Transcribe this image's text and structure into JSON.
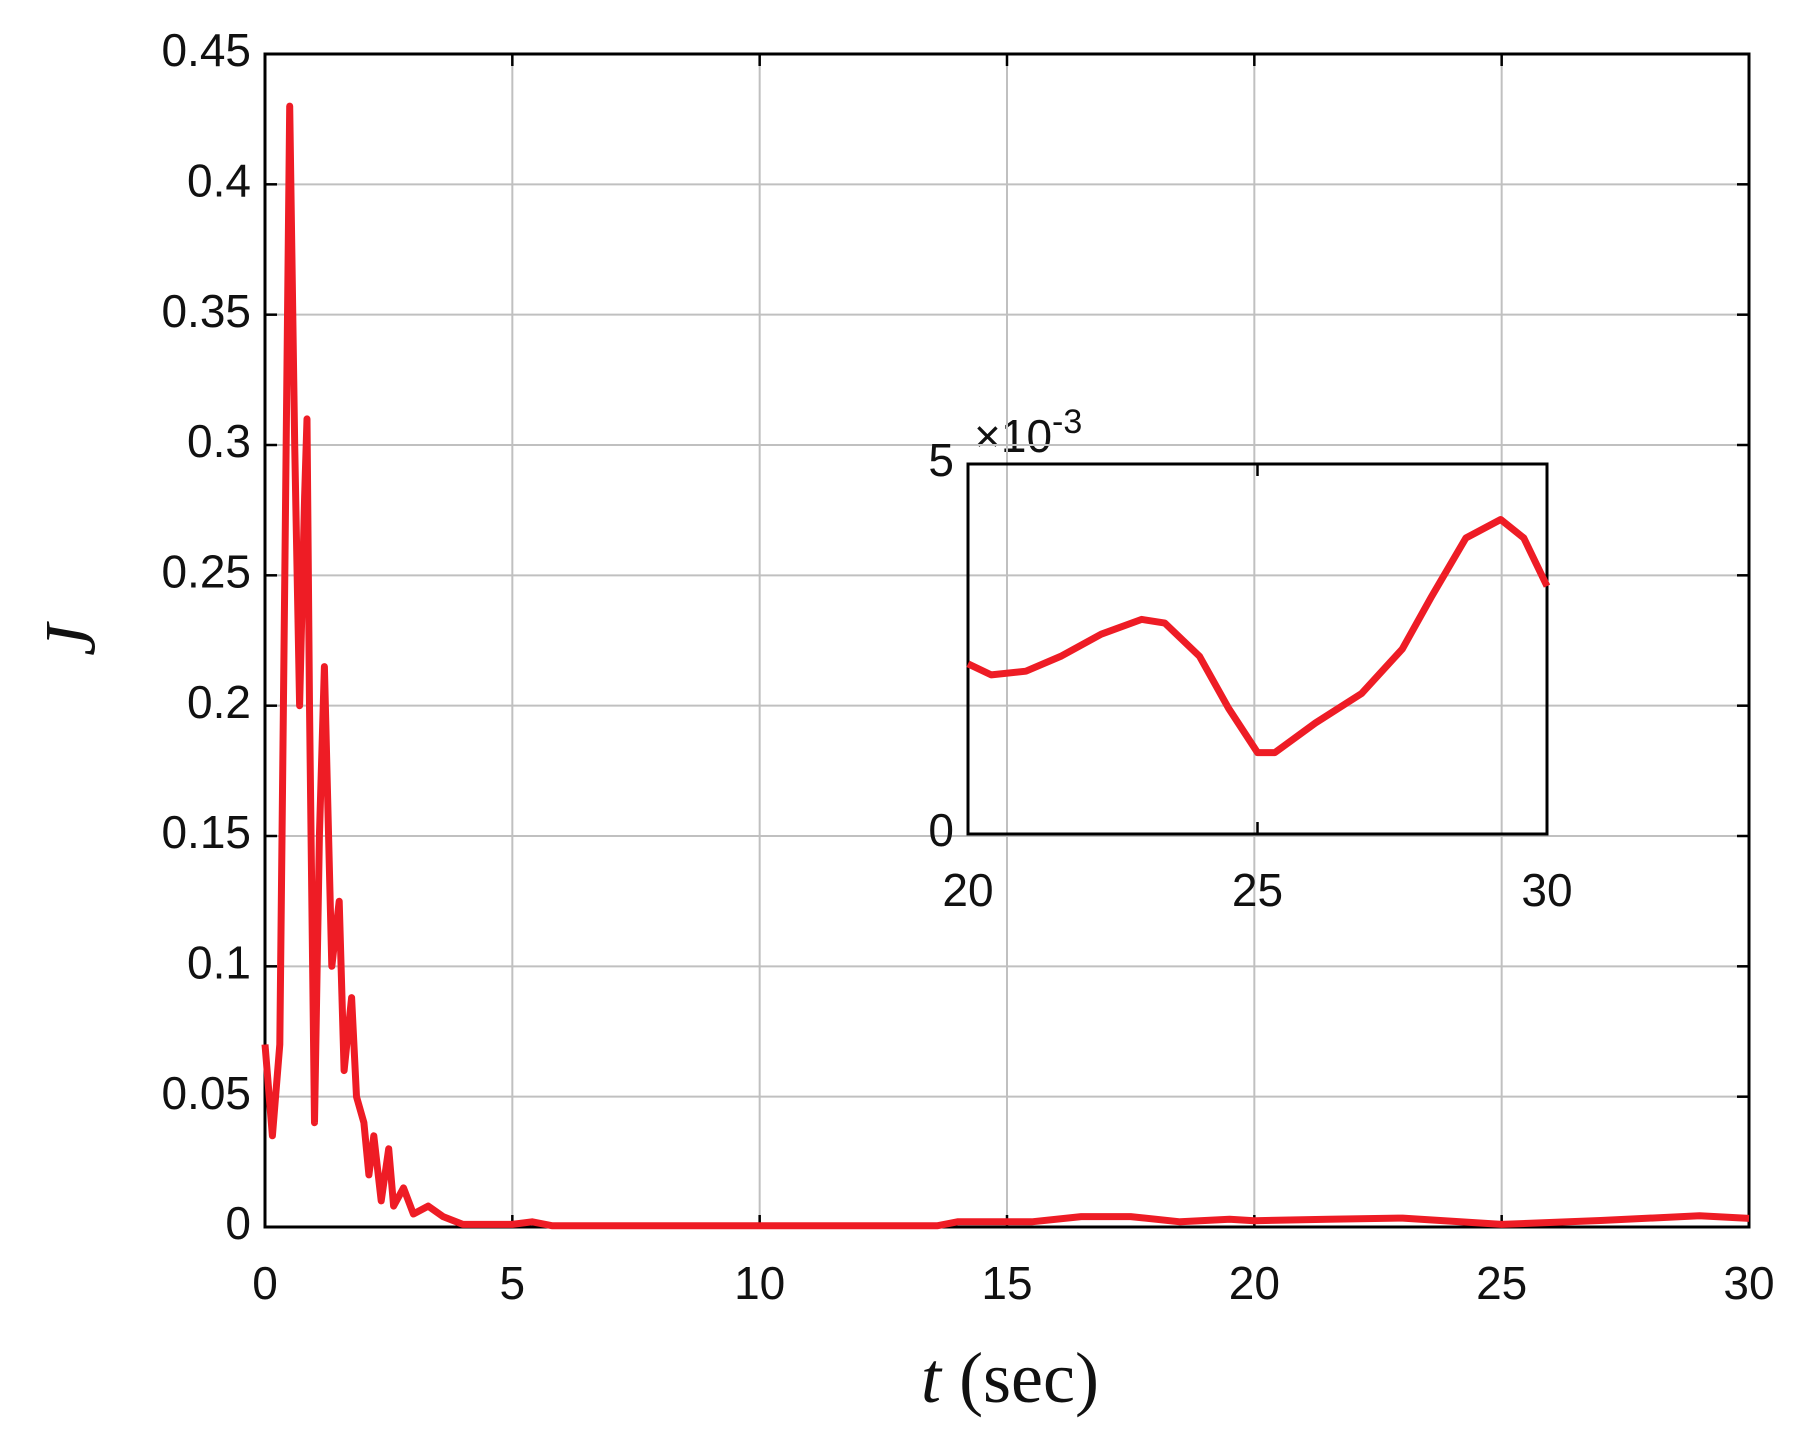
{
  "chart_data": [
    {
      "type": "line",
      "ylabel": "J",
      "xlabel": {
        "symbol": "t",
        "unit": "(sec)"
      },
      "xlim": [
        0,
        30
      ],
      "xticks": [
        0,
        5,
        10,
        15,
        20,
        25,
        30
      ],
      "ylim": [
        0,
        0.45
      ],
      "yticks": [
        0,
        0.05,
        0.1,
        0.15,
        0.2,
        0.25,
        0.3,
        0.35,
        0.4,
        0.45
      ],
      "grid": true,
      "series": [
        {
          "color": "#ee1c25",
          "x": [
            0,
            0.15,
            0.3,
            0.4,
            0.5,
            0.6,
            0.7,
            0.8,
            0.85,
            0.9,
            1.0,
            1.1,
            1.2,
            1.35,
            1.5,
            1.6,
            1.75,
            1.85,
            2.0,
            2.1,
            2.2,
            2.35,
            2.5,
            2.6,
            2.8,
            3.0,
            3.3,
            3.6,
            4.0,
            4.5,
            5.0,
            5.4,
            5.8,
            10,
            13.6,
            14,
            15.5,
            16.5,
            17.5,
            18.5,
            19.5,
            20,
            21.5,
            23,
            25,
            27,
            29,
            30
          ],
          "values": [
            0.07,
            0.035,
            0.07,
            0.25,
            0.43,
            0.3,
            0.2,
            0.28,
            0.31,
            0.2,
            0.04,
            0.15,
            0.215,
            0.1,
            0.125,
            0.06,
            0.088,
            0.05,
            0.04,
            0.02,
            0.035,
            0.01,
            0.03,
            0.008,
            0.015,
            0.005,
            0.008,
            0.004,
            0.001,
            0.001,
            0.001,
            0.002,
            0.0005,
            0.0005,
            0.0005,
            0.002,
            0.002,
            0.004,
            0.004,
            0.002,
            0.003,
            0.0024,
            0.003,
            0.0034,
            0.001,
            0.0025,
            0.0043,
            0.0033
          ]
        }
      ]
    },
    {
      "type": "line",
      "scale_label": {
        "base": "×10",
        "exponent": "-3"
      },
      "xlim": [
        20,
        30
      ],
      "xticks": [
        20,
        25,
        30
      ],
      "ylim": [
        0,
        5
      ],
      "yticks": [
        0,
        5
      ],
      "grid": false,
      "series": [
        {
          "color": "#ee1c25",
          "x": [
            20,
            20.4,
            21,
            21.6,
            22.3,
            23,
            23.4,
            24,
            24.5,
            25,
            25.3,
            26,
            26.8,
            27.5,
            28,
            28.6,
            29.2,
            29.6,
            30
          ],
          "values": [
            2.3,
            2.15,
            2.2,
            2.4,
            2.7,
            2.9,
            2.85,
            2.4,
            1.7,
            1.1,
            1.1,
            1.5,
            1.9,
            2.5,
            3.2,
            4.0,
            4.25,
            4.0,
            3.35
          ]
        }
      ]
    }
  ]
}
